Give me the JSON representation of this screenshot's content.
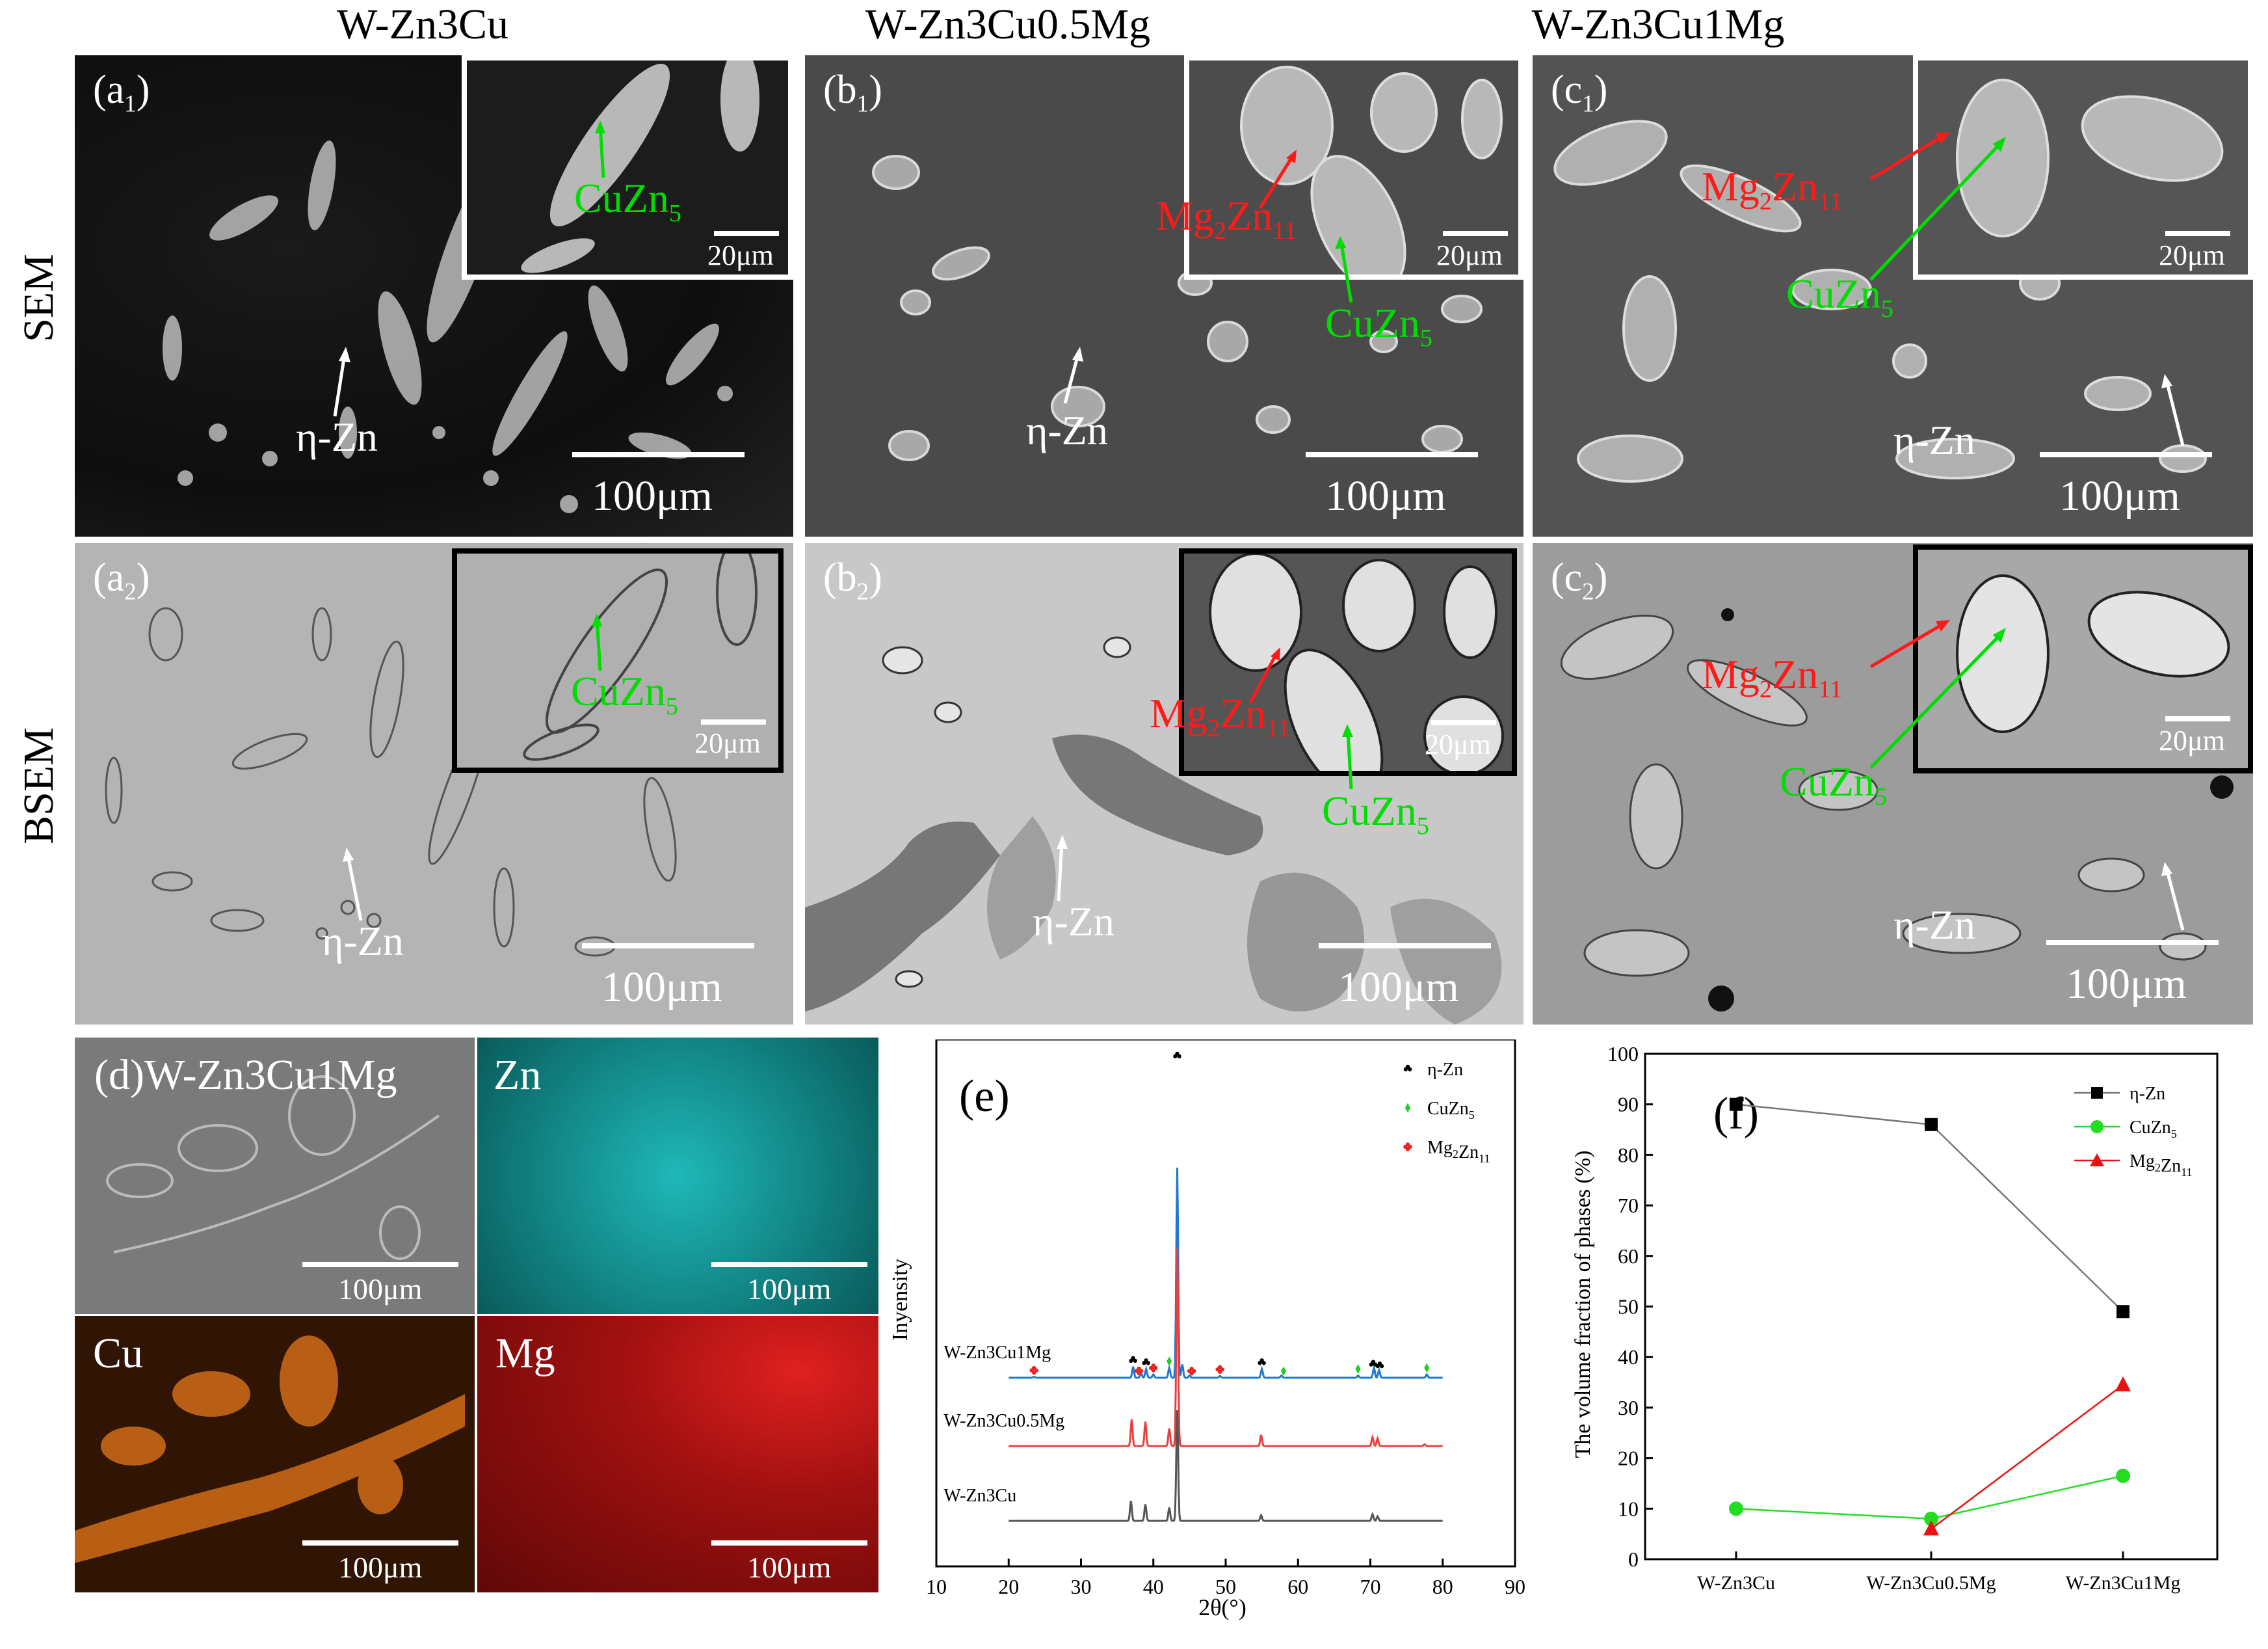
{
  "columns": {
    "a": "W-Zn3Cu",
    "b": "W-Zn3Cu0.5Mg",
    "c": "W-Zn3Cu1Mg"
  },
  "rows": {
    "sem": "SEM",
    "bsem": "BSEM"
  },
  "panels": {
    "a1": "(a",
    "a1_sub": "1",
    "b1": "(b",
    "b1_sub": "1",
    "c1": "(c",
    "c1_sub": "1",
    "a2": "(a",
    "a2_sub": "2",
    "b2": "(b",
    "b2_sub": "2",
    "c2": "(c",
    "c2_sub": "2",
    "close_paren": ")"
  },
  "annotations": {
    "eta_zn": "η-Zn",
    "cuzn": "CuZn",
    "cuzn_sub": "5",
    "mg2zn": "Mg",
    "mg2zn_sub1": "2",
    "mg2zn_mid": "Zn",
    "mg2zn_sub2": "11"
  },
  "scale": {
    "large": "100μm",
    "small": "20μm"
  },
  "eds": {
    "title": "(d)W-Zn3Cu1Mg",
    "zn": "Zn",
    "cu": "Cu",
    "mg": "Mg",
    "scale": "100μm",
    "colors": {
      "zn": "#16a6a6",
      "cu": "#e0781a",
      "mg": "#d01818"
    }
  },
  "chart_data": [
    {
      "type": "line",
      "panel": "(e)",
      "xlabel": "2θ(°)",
      "ylabel": "Inyensity",
      "xlim": [
        10,
        90
      ],
      "xticks": [
        "10",
        "20",
        "30",
        "40",
        "50",
        "60",
        "70",
        "80",
        "90"
      ],
      "legend": [
        {
          "name": "η-Zn",
          "marker": "club",
          "color": "#000000"
        },
        {
          "name": "CuZn5",
          "marker": "diamond",
          "color": "#22cc22"
        },
        {
          "name": "Mg2Zn11",
          "marker": "cross",
          "color": "#ee2222"
        }
      ],
      "series": [
        {
          "name": "W-Zn3Cu1Mg",
          "color": "#1f78d1",
          "offset": 2,
          "peaks": [
            [
              23.5,
              0.04
            ],
            [
              37.2,
              0.5
            ],
            [
              38.3,
              0.2
            ],
            [
              39.0,
              0.4
            ],
            [
              40.0,
              0.15
            ],
            [
              42.2,
              0.45
            ],
            [
              43.3,
              9.5
            ],
            [
              44.0,
              0.6
            ],
            [
              45.0,
              0.1
            ],
            [
              49.2,
              0.08
            ],
            [
              55.0,
              0.4
            ],
            [
              57.7,
              0.1
            ],
            [
              68.3,
              0.1
            ],
            [
              70.5,
              0.45
            ],
            [
              71.2,
              0.35
            ],
            [
              77.8,
              0.15
            ]
          ]
        },
        {
          "name": "W-Zn3Cu0.5Mg",
          "color": "#e84040",
          "offset": 1,
          "peaks": [
            [
              37.0,
              1.2
            ],
            [
              38.9,
              1.1
            ],
            [
              42.2,
              0.8
            ],
            [
              43.3,
              9.0
            ],
            [
              54.9,
              0.5
            ],
            [
              70.3,
              0.4
            ],
            [
              71.0,
              0.35
            ],
            [
              77.5,
              0.08
            ]
          ]
        },
        {
          "name": "W-Zn3Cu",
          "color": "#555555",
          "offset": 0,
          "peaks": [
            [
              36.9,
              0.9
            ],
            [
              38.9,
              0.75
            ],
            [
              42.2,
              0.6
            ],
            [
              43.3,
              5.0
            ],
            [
              54.9,
              0.25
            ],
            [
              70.3,
              0.3
            ],
            [
              71.0,
              0.2
            ]
          ]
        }
      ],
      "markers": [
        {
          "x": 23.5,
          "kind": "cross"
        },
        {
          "x": 37.2,
          "kind": "club"
        },
        {
          "x": 38.0,
          "kind": "cross"
        },
        {
          "x": 39.0,
          "kind": "club"
        },
        {
          "x": 40.0,
          "kind": "cross"
        },
        {
          "x": 42.2,
          "kind": "diamond"
        },
        {
          "x": 43.3,
          "kind": "club"
        },
        {
          "x": 45.3,
          "kind": "cross"
        },
        {
          "x": 49.2,
          "kind": "cross"
        },
        {
          "x": 55.0,
          "kind": "club"
        },
        {
          "x": 58.0,
          "kind": "diamond"
        },
        {
          "x": 68.3,
          "kind": "diamond"
        },
        {
          "x": 70.4,
          "kind": "club"
        },
        {
          "x": 71.3,
          "kind": "club"
        },
        {
          "x": 77.8,
          "kind": "diamond"
        }
      ]
    },
    {
      "type": "line",
      "panel": "(f)",
      "ylabel": "The volume fraction of phases (%)",
      "ylim": [
        0,
        100
      ],
      "yticks": [
        "0",
        "10",
        "20",
        "30",
        "40",
        "50",
        "60",
        "70",
        "80",
        "90",
        "100"
      ],
      "categories": [
        "W-Zn3Cu",
        "W-Zn3Cu0.5Mg",
        "W-Zn3Cu1Mg"
      ],
      "legend_position": "top-right",
      "series": [
        {
          "name": "η-Zn",
          "marker": "square",
          "color": "#000000",
          "line_color": "#777777",
          "values": [
            90,
            86,
            49
          ]
        },
        {
          "name": "CuZn5",
          "marker": "circle",
          "color": "#22dd22",
          "line_color": "#22dd22",
          "values": [
            10,
            8,
            16.5
          ]
        },
        {
          "name": "Mg2Zn11",
          "marker": "triangle",
          "color": "#ee1111",
          "line_color": "#ee1111",
          "values": [
            null,
            6,
            34.5
          ]
        }
      ]
    }
  ]
}
